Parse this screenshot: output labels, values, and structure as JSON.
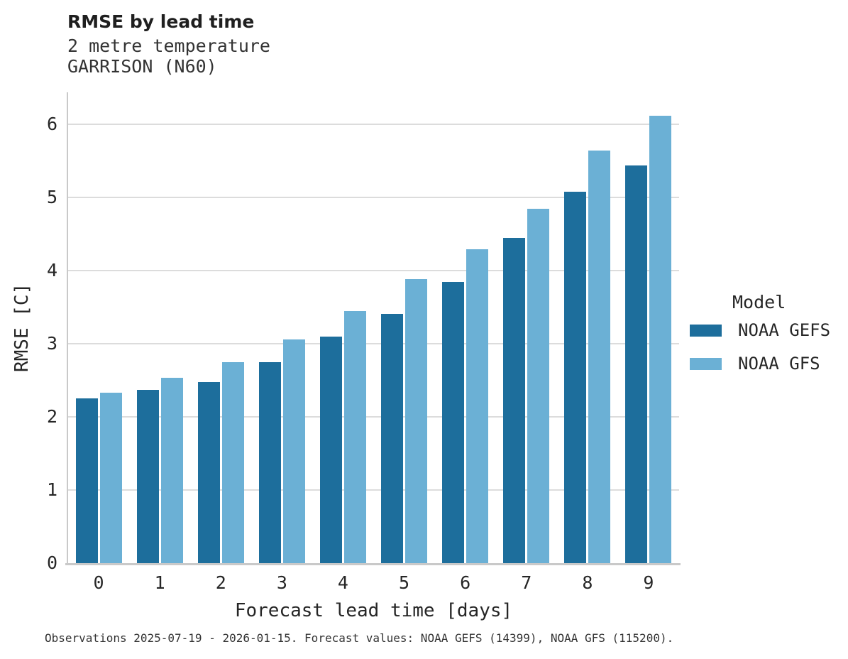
{
  "header": {
    "title": "RMSE by lead time",
    "subtitle_line1": "2 metre temperature",
    "subtitle_line2": "GARRISON (N60)"
  },
  "chart_data": {
    "type": "bar",
    "title": "RMSE by lead time",
    "subtitle": [
      "2 metre temperature",
      "GARRISON (N60)"
    ],
    "categories": [
      "0",
      "1",
      "2",
      "3",
      "4",
      "5",
      "6",
      "7",
      "8",
      "9"
    ],
    "series": [
      {
        "name": "NOAA GEFS",
        "color": "#1d6e9c",
        "values": [
          2.25,
          2.37,
          2.48,
          2.75,
          3.1,
          3.41,
          3.85,
          4.45,
          5.08,
          5.44
        ]
      },
      {
        "name": "NOAA GFS",
        "color": "#6bb0d5",
        "values": [
          2.33,
          2.54,
          2.75,
          3.06,
          3.45,
          3.89,
          4.29,
          4.85,
          5.64,
          6.12
        ]
      }
    ],
    "xlabel": "Forecast lead time [days]",
    "ylabel": "RMSE [C]",
    "ylim": [
      0,
      6.44
    ],
    "yticks": [
      0,
      1,
      2,
      3,
      4,
      5,
      6
    ],
    "grid": "horizontal",
    "legend_title": "Model",
    "legend_position": "right-center"
  },
  "footer": {
    "note": "Observations 2025-07-19 - 2026-01-15. Forecast values: NOAA GEFS (14399), NOAA GFS (115200)."
  },
  "colors": {
    "series_dark": "#1d6e9c",
    "series_light": "#6bb0d5",
    "gridline": "#dcdcdc",
    "spine": "#c9c9c9",
    "text": "#262626"
  }
}
